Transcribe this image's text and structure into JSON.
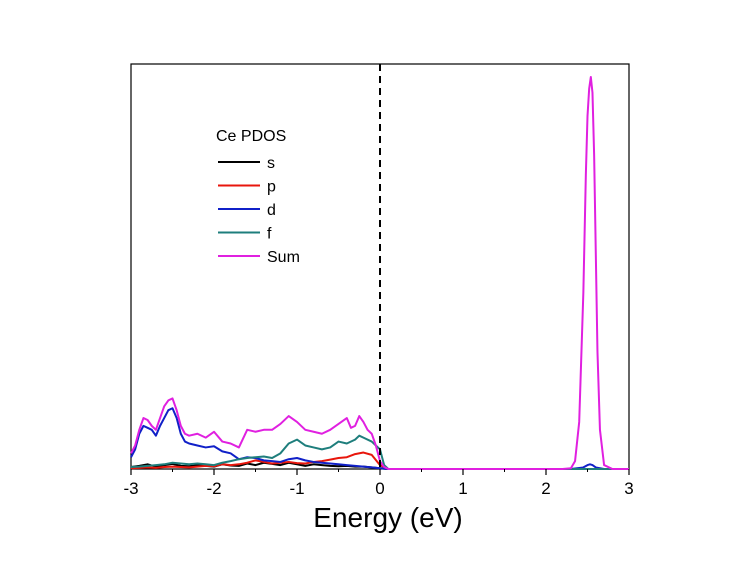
{
  "chart_data": {
    "type": "line",
    "title": "",
    "xlabel": "Energy (eV)",
    "ylabel": "",
    "xlim": [
      -3,
      3
    ],
    "ylim": [
      0,
      1
    ],
    "x_ticks": [
      -3,
      -2,
      -1,
      0,
      1,
      2,
      3
    ],
    "x_tick_labels": [
      "-3",
      "-2",
      "-1",
      "0",
      "1",
      "2",
      "3"
    ],
    "y_tick_labels_shown": false,
    "grid": false,
    "fermi_level_line": {
      "x": 0,
      "style": "dashed",
      "color": "#000000"
    },
    "legend": {
      "title": "Ce PDOS",
      "placement": "upper-left"
    },
    "series": [
      {
        "name": "s",
        "color": "#000000",
        "x": [
          -3.0,
          -2.9,
          -2.8,
          -2.7,
          -2.6,
          -2.5,
          -2.4,
          -2.3,
          -2.2,
          -2.1,
          -2.0,
          -1.9,
          -1.8,
          -1.7,
          -1.6,
          -1.5,
          -1.4,
          -1.3,
          -1.2,
          -1.1,
          -1.0,
          -0.9,
          -0.8,
          -0.7,
          -0.6,
          -0.5,
          -0.4,
          -0.3,
          -0.2,
          -0.1,
          0.0,
          0.1,
          2.3,
          2.5,
          2.55,
          2.6,
          2.8,
          3.0
        ],
        "y": [
          0.005,
          0.008,
          0.012,
          0.006,
          0.01,
          0.013,
          0.008,
          0.007,
          0.01,
          0.008,
          0.006,
          0.012,
          0.009,
          0.008,
          0.014,
          0.01,
          0.016,
          0.013,
          0.01,
          0.016,
          0.012,
          0.008,
          0.012,
          0.01,
          0.008,
          0.007,
          0.008,
          0.006,
          0.006,
          0.004,
          0.002,
          0.0,
          0.0,
          0.0,
          0.0,
          0.0,
          0.0,
          0.0
        ]
      },
      {
        "name": "p",
        "color": "#e8160c",
        "x": [
          -3.0,
          -2.9,
          -2.8,
          -2.7,
          -2.6,
          -2.5,
          -2.4,
          -2.3,
          -2.2,
          -2.1,
          -2.0,
          -1.9,
          -1.8,
          -1.7,
          -1.6,
          -1.5,
          -1.4,
          -1.3,
          -1.2,
          -1.1,
          -1.0,
          -0.9,
          -0.8,
          -0.7,
          -0.6,
          -0.5,
          -0.4,
          -0.3,
          -0.2,
          -0.1,
          0.0,
          0.1,
          2.3,
          2.5,
          2.55,
          2.6,
          2.8,
          3.0
        ],
        "y": [
          0.002,
          0.003,
          0.004,
          0.003,
          0.005,
          0.006,
          0.005,
          0.004,
          0.006,
          0.008,
          0.007,
          0.012,
          0.01,
          0.012,
          0.016,
          0.022,
          0.018,
          0.014,
          0.016,
          0.018,
          0.015,
          0.014,
          0.018,
          0.02,
          0.024,
          0.028,
          0.03,
          0.038,
          0.042,
          0.036,
          0.01,
          0.0,
          0.0,
          0.0,
          0.0,
          0.0,
          0.0,
          0.0
        ]
      },
      {
        "name": "d",
        "color": "#1020c8",
        "x": [
          -3.0,
          -2.95,
          -2.9,
          -2.85,
          -2.8,
          -2.75,
          -2.7,
          -2.65,
          -2.6,
          -2.55,
          -2.5,
          -2.45,
          -2.4,
          -2.35,
          -2.3,
          -2.2,
          -2.1,
          -2.0,
          -1.9,
          -1.8,
          -1.7,
          -1.6,
          -1.5,
          -1.4,
          -1.3,
          -1.2,
          -1.1,
          -1.0,
          -0.9,
          -0.8,
          -0.7,
          -0.6,
          -0.5,
          -0.4,
          -0.3,
          -0.2,
          -0.1,
          0.0,
          0.1,
          2.3,
          2.45,
          2.5,
          2.53,
          2.56,
          2.6,
          2.7,
          3.0
        ],
        "y": [
          0.03,
          0.05,
          0.09,
          0.11,
          0.105,
          0.1,
          0.085,
          0.11,
          0.13,
          0.15,
          0.155,
          0.13,
          0.09,
          0.07,
          0.065,
          0.06,
          0.055,
          0.058,
          0.045,
          0.04,
          0.025,
          0.03,
          0.028,
          0.022,
          0.02,
          0.018,
          0.025,
          0.028,
          0.022,
          0.018,
          0.016,
          0.014,
          0.012,
          0.01,
          0.008,
          0.006,
          0.004,
          0.002,
          0.0,
          0.0,
          0.004,
          0.01,
          0.012,
          0.01,
          0.004,
          0.0,
          0.0
        ]
      },
      {
        "name": "f",
        "color": "#1e7e7c",
        "x": [
          -3.0,
          -2.9,
          -2.8,
          -2.7,
          -2.6,
          -2.5,
          -2.4,
          -2.3,
          -2.2,
          -2.1,
          -2.0,
          -1.9,
          -1.8,
          -1.7,
          -1.6,
          -1.5,
          -1.4,
          -1.3,
          -1.2,
          -1.1,
          -1.0,
          -0.9,
          -0.8,
          -0.7,
          -0.6,
          -0.5,
          -0.4,
          -0.3,
          -0.25,
          -0.2,
          -0.1,
          0.0,
          0.05,
          0.1,
          2.3,
          3.0
        ],
        "y": [
          0.005,
          0.006,
          0.008,
          0.01,
          0.012,
          0.016,
          0.014,
          0.012,
          0.014,
          0.012,
          0.01,
          0.016,
          0.02,
          0.025,
          0.028,
          0.03,
          0.032,
          0.028,
          0.04,
          0.065,
          0.075,
          0.06,
          0.055,
          0.05,
          0.055,
          0.07,
          0.065,
          0.075,
          0.085,
          0.08,
          0.07,
          0.05,
          0.01,
          0.0,
          0.0,
          0.0
        ]
      },
      {
        "name": "Sum",
        "color": "#e020e0",
        "x": [
          -3.0,
          -2.95,
          -2.9,
          -2.85,
          -2.8,
          -2.75,
          -2.7,
          -2.65,
          -2.6,
          -2.55,
          -2.5,
          -2.45,
          -2.4,
          -2.35,
          -2.3,
          -2.2,
          -2.1,
          -2.0,
          -1.9,
          -1.8,
          -1.7,
          -1.6,
          -1.5,
          -1.4,
          -1.3,
          -1.2,
          -1.1,
          -1.0,
          -0.9,
          -0.8,
          -0.7,
          -0.6,
          -0.5,
          -0.4,
          -0.35,
          -0.3,
          -0.25,
          -0.2,
          -0.15,
          -0.1,
          -0.05,
          0.0,
          0.05,
          0.1,
          2.2,
          2.3,
          2.35,
          2.4,
          2.45,
          2.48,
          2.5,
          2.52,
          2.54,
          2.56,
          2.58,
          2.6,
          2.62,
          2.65,
          2.7,
          2.8,
          3.0
        ],
        "y": [
          0.04,
          0.06,
          0.1,
          0.13,
          0.125,
          0.11,
          0.1,
          0.13,
          0.16,
          0.175,
          0.18,
          0.15,
          0.11,
          0.09,
          0.085,
          0.09,
          0.08,
          0.095,
          0.07,
          0.065,
          0.055,
          0.1,
          0.095,
          0.1,
          0.1,
          0.115,
          0.135,
          0.12,
          0.1,
          0.095,
          0.09,
          0.1,
          0.115,
          0.13,
          0.105,
          0.11,
          0.135,
          0.12,
          0.1,
          0.09,
          0.06,
          0.02,
          0.005,
          0.0,
          0.0,
          0.002,
          0.02,
          0.12,
          0.45,
          0.75,
          0.9,
          0.97,
          1.0,
          0.96,
          0.8,
          0.55,
          0.3,
          0.1,
          0.01,
          0.0,
          0.0
        ]
      }
    ]
  }
}
